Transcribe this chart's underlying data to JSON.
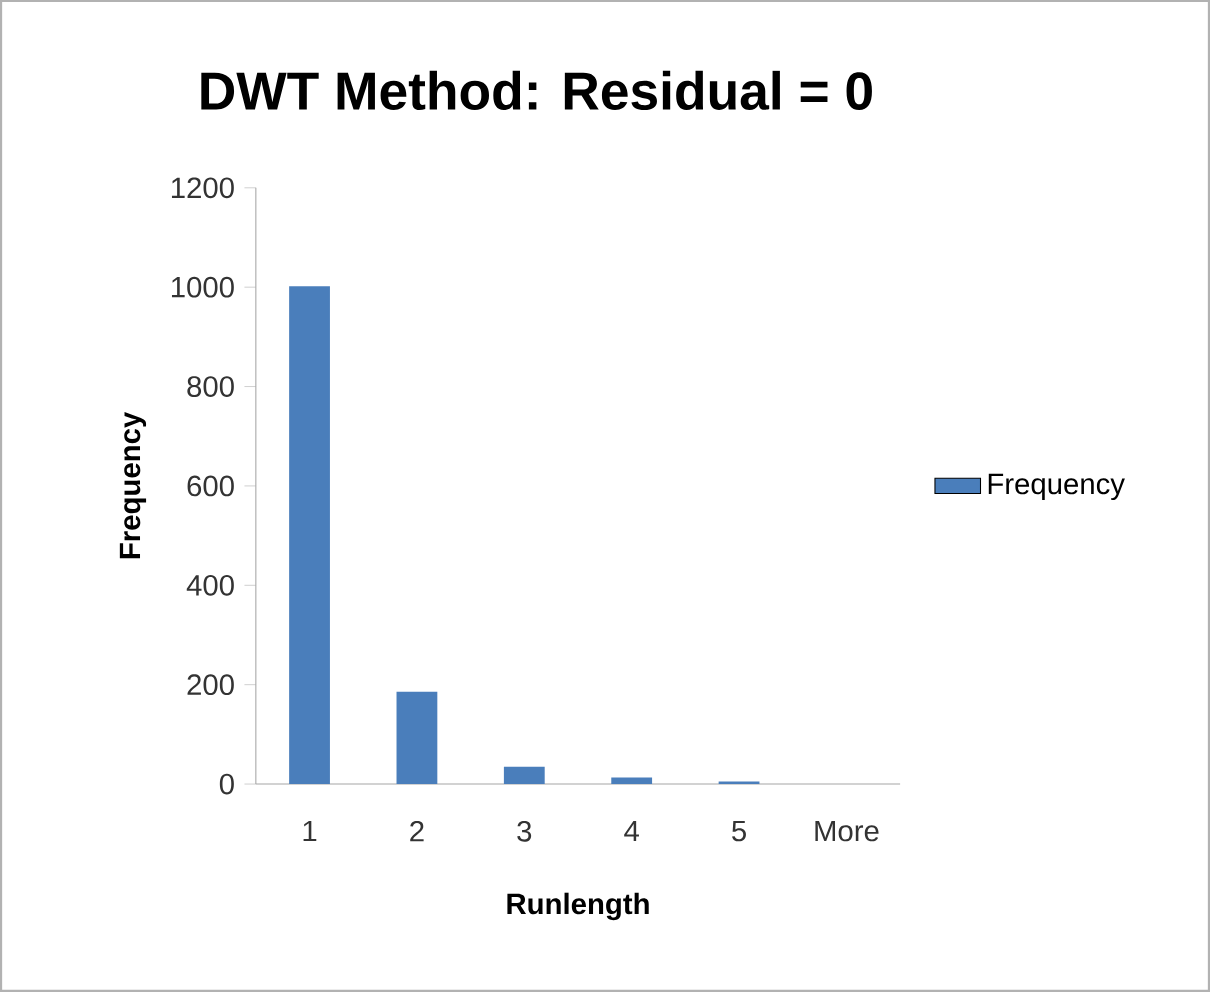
{
  "chart_data": {
    "type": "bar",
    "title": "DWT Method: Residual = 0",
    "xlabel": "Runlength",
    "ylabel": "Frequency",
    "categories": [
      "1",
      "2",
      "3",
      "4",
      "5",
      "More"
    ],
    "series": [
      {
        "name": "Frequency",
        "color": "#4a7ebb",
        "values": [
          1002,
          186,
          35,
          13,
          5,
          0
        ]
      }
    ],
    "ylim": [
      0,
      1200
    ],
    "yticks": [
      0,
      200,
      400,
      600,
      800,
      1000,
      1200
    ],
    "grid": false,
    "legend": "right"
  }
}
